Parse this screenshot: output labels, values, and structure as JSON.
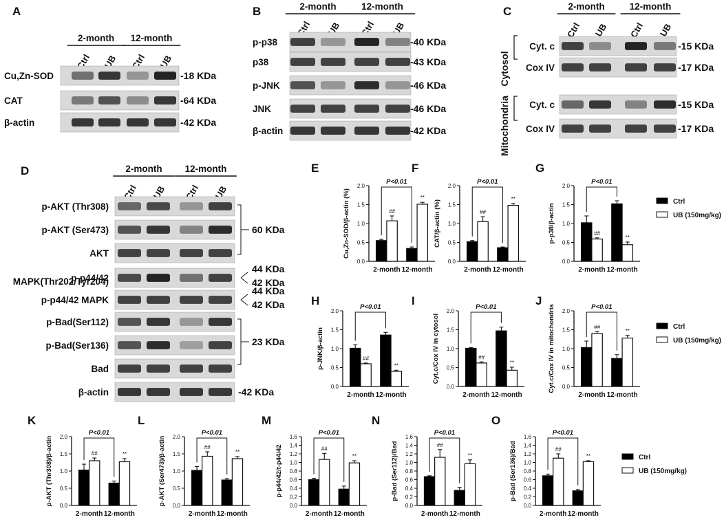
{
  "blots": {
    "A": {
      "letter": "A",
      "groups": [
        "2-month",
        "12-month"
      ],
      "lanes": [
        "Ctrl",
        "UB",
        "Ctrl",
        "UB"
      ],
      "rows": [
        {
          "label": "Cu,Zn-SOD",
          "mw": "-18 KDa",
          "intensity": [
            0.55,
            0.85,
            0.35,
            0.95
          ]
        },
        {
          "label": "CAT",
          "mw": "-64 KDa",
          "intensity": [
            0.5,
            0.7,
            0.4,
            0.85
          ]
        },
        {
          "label": "β-actin",
          "mw": "-42 KDa",
          "intensity": [
            0.85,
            0.85,
            0.85,
            0.85
          ]
        }
      ]
    },
    "B": {
      "letter": "B",
      "groups": [
        "2-month",
        "12-month"
      ],
      "lanes": [
        "Ctrl",
        "UB",
        "Ctrl",
        "UB"
      ],
      "rows": [
        {
          "label": "p-p38",
          "mw": "-40 KDa",
          "intensity": [
            0.8,
            0.35,
            0.95,
            0.45
          ]
        },
        {
          "label": "p38",
          "mw": "-43 KDa",
          "intensity": [
            0.8,
            0.8,
            0.8,
            0.8
          ]
        },
        {
          "label": "p-JNK",
          "mw": "-46 KDa",
          "intensity": [
            0.7,
            0.35,
            0.9,
            0.35
          ]
        },
        {
          "label": "JNK",
          "mw": "-46 KDa",
          "intensity": [
            0.8,
            0.8,
            0.8,
            0.8
          ]
        },
        {
          "label": "β-actin",
          "mw": "-42 KDa",
          "intensity": [
            0.85,
            0.85,
            0.85,
            0.85
          ]
        }
      ]
    },
    "C": {
      "letter": "C",
      "groups": [
        "2-month",
        "12-month"
      ],
      "lanes": [
        "Ctrl",
        "UB",
        "Ctrl",
        "UB"
      ],
      "sections": [
        "Cytosol",
        "Mitochondria"
      ],
      "rows": [
        {
          "label": "Cyt. c",
          "mw": "-15 KDa",
          "intensity": [
            0.8,
            0.4,
            0.95,
            0.5
          ]
        },
        {
          "label": "Cox IV",
          "mw": "-17 KDa",
          "intensity": [
            0.8,
            0.8,
            0.8,
            0.8
          ]
        },
        {
          "label": "Cyt. c",
          "mw": "-15 KDa",
          "intensity": [
            0.6,
            0.85,
            0.45,
            0.9
          ]
        },
        {
          "label": "Cox IV",
          "mw": "-17 KDa",
          "intensity": [
            0.8,
            0.8,
            0.8,
            0.8
          ]
        }
      ]
    },
    "D": {
      "letter": "D",
      "groups": [
        "2-month",
        "12-month"
      ],
      "lanes": [
        "Ctrl",
        "UB",
        "Ctrl",
        "UB"
      ],
      "rows": [
        {
          "label": "p-AKT (Thr308)",
          "intensity": [
            0.6,
            0.75,
            0.35,
            0.8
          ]
        },
        {
          "label": "p-AKT (Ser473)",
          "intensity": [
            0.7,
            0.85,
            0.45,
            0.9
          ]
        },
        {
          "label": "AKT",
          "intensity": [
            0.8,
            0.8,
            0.8,
            0.8
          ]
        },
        {
          "label": "p-p44/42",
          "intensity": [
            0.75,
            0.95,
            0.55,
            0.8
          ]
        },
        {
          "label": "p-p44/42 MAPK",
          "intensity": [
            0.8,
            0.8,
            0.8,
            0.8
          ]
        },
        {
          "label": "p-Bad(Ser112)",
          "intensity": [
            0.7,
            0.85,
            0.35,
            0.85
          ]
        },
        {
          "label": "p-Bad(Ser136)",
          "intensity": [
            0.7,
            0.9,
            0.3,
            0.8
          ]
        },
        {
          "label": "Bad",
          "intensity": [
            0.8,
            0.8,
            0.8,
            0.8
          ]
        },
        {
          "label": "β-actin",
          "intensity": [
            0.85,
            0.85,
            0.85,
            0.85
          ]
        }
      ],
      "label_line2": "MAPK(Thr202/Tyr204)",
      "mw_labels": [
        "60 KDa",
        "44 KDa",
        "42 KDa",
        "44 KDa",
        "42 KDa",
        "23 KDa",
        "-42 KDa"
      ]
    }
  },
  "legend": {
    "ctrl": "Ctrl",
    "ub": "UB (150mg/kg)"
  },
  "colors": {
    "ctrl": "#000000",
    "ub": "#ffffff",
    "band": "#1a1a1a",
    "blot_bg": "#d9d9d9"
  },
  "chart_data": [
    {
      "panel": "E",
      "type": "bar",
      "ylabel": "Cu,Zn-SOD/β-actin (%)",
      "ylim": [
        0,
        2.0
      ],
      "yticks": [
        "0.0",
        "0.5",
        "1.0",
        "1.5",
        "2.0"
      ],
      "ytick_values": [
        0,
        0.5,
        1.0,
        1.5,
        2.0
      ],
      "categories": [
        "2-month",
        "12-month"
      ],
      "series": [
        {
          "name": "Ctrl",
          "values": [
            0.55,
            0.34
          ],
          "errors": [
            0.03,
            0.04
          ]
        },
        {
          "name": "UB (150mg/kg)",
          "values": [
            1.07,
            1.51
          ],
          "errors": [
            0.13,
            0.05
          ]
        }
      ],
      "annotations": {
        "bracket": "P<0.01",
        "ub_marks": [
          "##",
          "**"
        ]
      }
    },
    {
      "panel": "F",
      "type": "bar",
      "ylabel": "CAT/β-actin (%)",
      "ylim": [
        0,
        2.0
      ],
      "yticks": [
        "0.0",
        "0.5",
        "1.0",
        "1.5",
        "2.0"
      ],
      "ytick_values": [
        0,
        0.5,
        1.0,
        1.5,
        2.0
      ],
      "categories": [
        "2-month",
        "12-month"
      ],
      "series": [
        {
          "name": "Ctrl",
          "values": [
            0.52,
            0.36
          ],
          "errors": [
            0.03,
            0.02
          ]
        },
        {
          "name": "UB (150mg/kg)",
          "values": [
            1.05,
            1.48
          ],
          "errors": [
            0.13,
            0.05
          ]
        }
      ],
      "annotations": {
        "bracket": "P<0.01",
        "ub_marks": [
          "##",
          "**"
        ]
      }
    },
    {
      "panel": "G",
      "type": "bar",
      "ylabel": "p-p38/β-actin",
      "ylim": [
        0,
        2.0
      ],
      "yticks": [
        "0.0",
        "0.5",
        "1.0",
        "1.5",
        "2.0"
      ],
      "ytick_values": [
        0,
        0.5,
        1.0,
        1.5,
        2.0
      ],
      "categories": [
        "2-month",
        "12-month"
      ],
      "series": [
        {
          "name": "Ctrl",
          "values": [
            1.02,
            1.52
          ],
          "errors": [
            0.18,
            0.08
          ]
        },
        {
          "name": "UB (150mg/kg)",
          "values": [
            0.59,
            0.44
          ],
          "errors": [
            0.03,
            0.07
          ]
        }
      ],
      "annotations": {
        "bracket": "P<0.01",
        "ub_marks": [
          "##",
          "**"
        ]
      }
    },
    {
      "panel": "H",
      "type": "bar",
      "ylabel": "p-JNK/β-actin",
      "ylim": [
        0,
        2.0
      ],
      "yticks": [
        "0.0",
        "0.5",
        "1.0",
        "1.5",
        "2.0"
      ],
      "ytick_values": [
        0,
        0.5,
        1.0,
        1.5,
        2.0
      ],
      "categories": [
        "2-month",
        "12-month"
      ],
      "series": [
        {
          "name": "Ctrl",
          "values": [
            1.01,
            1.36
          ],
          "errors": [
            0.09,
            0.07
          ]
        },
        {
          "name": "UB (150mg/kg)",
          "values": [
            0.6,
            0.4
          ],
          "errors": [
            0.02,
            0.03
          ]
        }
      ],
      "annotations": {
        "bracket": "P<0.01",
        "ub_marks": [
          "##",
          "**"
        ]
      }
    },
    {
      "panel": "I",
      "type": "bar",
      "ylabel": "Cyt.c/Cox IV in cytosol",
      "ylim": [
        0,
        2.0
      ],
      "yticks": [
        "0.0",
        "0.5",
        "1.0",
        "1.5",
        "2.0"
      ],
      "ytick_values": [
        0,
        0.5,
        1.0,
        1.5,
        2.0
      ],
      "categories": [
        "2-month",
        "12-month"
      ],
      "series": [
        {
          "name": "Ctrl",
          "values": [
            1.01,
            1.47
          ],
          "errors": [
            0.02,
            0.1
          ]
        },
        {
          "name": "UB (150mg/kg)",
          "values": [
            0.62,
            0.43
          ],
          "errors": [
            0.03,
            0.08
          ]
        }
      ],
      "annotations": {
        "bracket": "P<0.01",
        "ub_marks": [
          "##",
          "**"
        ]
      }
    },
    {
      "panel": "J",
      "type": "bar",
      "ylabel": "Cyt.c/Cox IV in mitochondria",
      "ylim": [
        0,
        2.0
      ],
      "yticks": [
        "0.0",
        "0.5",
        "1.0",
        "1.5",
        "2.0"
      ],
      "ytick_values": [
        0,
        0.5,
        1.0,
        1.5,
        2.0
      ],
      "categories": [
        "2-month",
        "12-month"
      ],
      "series": [
        {
          "name": "Ctrl",
          "values": [
            1.03,
            0.74
          ],
          "errors": [
            0.17,
            0.1
          ]
        },
        {
          "name": "UB (150mg/kg)",
          "values": [
            1.4,
            1.28
          ],
          "errors": [
            0.05,
            0.07
          ]
        }
      ],
      "annotations": {
        "bracket": "P<0.01",
        "ub_marks": [
          "##",
          "**"
        ]
      }
    },
    {
      "panel": "K",
      "type": "bar",
      "ylabel": "p-AKT (Thr308)/β-actin",
      "ylim": [
        0,
        2.0
      ],
      "yticks": [
        "0.0",
        "0.5",
        "1.0",
        "1.5",
        "2.0"
      ],
      "ytick_values": [
        0,
        0.5,
        1.0,
        1.5,
        2.0
      ],
      "categories": [
        "2-month",
        "12-month"
      ],
      "series": [
        {
          "name": "Ctrl",
          "values": [
            1.03,
            0.65
          ],
          "errors": [
            0.17,
            0.06
          ]
        },
        {
          "name": "UB (150mg/kg)",
          "values": [
            1.3,
            1.27
          ],
          "errors": [
            0.08,
            0.09
          ]
        }
      ],
      "annotations": {
        "bracket": "P<0.01",
        "ub_marks": [
          "##",
          "**"
        ]
      }
    },
    {
      "panel": "L",
      "type": "bar",
      "ylabel": "p-AKT (Ser473)/β-actin",
      "ylim": [
        0,
        2.0
      ],
      "yticks": [
        "0.0",
        "0.5",
        "1.0",
        "1.5",
        "2.0"
      ],
      "ytick_values": [
        0,
        0.5,
        1.0,
        1.5,
        2.0
      ],
      "categories": [
        "2-month",
        "12-month"
      ],
      "series": [
        {
          "name": "Ctrl",
          "values": [
            1.02,
            0.74
          ],
          "errors": [
            0.11,
            0.04
          ]
        },
        {
          "name": "UB (150mg/kg)",
          "values": [
            1.43,
            1.36
          ],
          "errors": [
            0.13,
            0.06
          ]
        }
      ],
      "annotations": {
        "bracket": "P<0.01",
        "ub_marks": [
          "##",
          "**"
        ]
      }
    },
    {
      "panel": "M",
      "type": "bar",
      "ylabel": "p-p44/42/t-p44/42",
      "ylim": [
        0,
        1.6
      ],
      "yticks": [
        "0.0",
        "0.2",
        "0.4",
        "0.6",
        "0.8",
        "1.0",
        "1.2",
        "1.4",
        "1.6"
      ],
      "ytick_values": [
        0,
        0.2,
        0.4,
        0.6,
        0.8,
        1.0,
        1.2,
        1.4,
        1.6
      ],
      "categories": [
        "2-month",
        "12-month"
      ],
      "series": [
        {
          "name": "Ctrl",
          "values": [
            0.6,
            0.38
          ],
          "errors": [
            0.03,
            0.07
          ]
        },
        {
          "name": "UB (150mg/kg)",
          "values": [
            1.07,
            0.99
          ],
          "errors": [
            0.14,
            0.05
          ]
        }
      ],
      "annotations": {
        "bracket": "P<0.01",
        "ub_marks": [
          "##",
          "**"
        ]
      }
    },
    {
      "panel": "N",
      "type": "bar",
      "ylabel": "p-Bad (Ser112)/Bad",
      "ylim": [
        0,
        1.6
      ],
      "yticks": [
        "0.0",
        "0.2",
        "0.4",
        "0.6",
        "0.8",
        "1.0",
        "1.2",
        "1.4",
        "1.6"
      ],
      "ytick_values": [
        0,
        0.2,
        0.4,
        0.6,
        0.8,
        1.0,
        1.2,
        1.4,
        1.6
      ],
      "categories": [
        "2-month",
        "12-month"
      ],
      "series": [
        {
          "name": "Ctrl",
          "values": [
            0.67,
            0.35
          ],
          "errors": [
            0.02,
            0.07
          ]
        },
        {
          "name": "UB (150mg/kg)",
          "values": [
            1.12,
            0.97
          ],
          "errors": [
            0.18,
            0.09
          ]
        }
      ],
      "annotations": {
        "bracket": "P<0.01",
        "ub_marks": [
          "##",
          "**"
        ]
      }
    },
    {
      "panel": "O",
      "type": "bar",
      "ylabel": "p-Bad (Ser136)/Bad",
      "ylim": [
        0,
        1.6
      ],
      "yticks": [
        "0.0",
        "0.2",
        "0.4",
        "0.6",
        "0.8",
        "1.0",
        "1.2",
        "1.4",
        "1.6"
      ],
      "ytick_values": [
        0,
        0.2,
        0.4,
        0.6,
        0.8,
        1.0,
        1.2,
        1.4,
        1.6
      ],
      "categories": [
        "2-month",
        "12-month"
      ],
      "series": [
        {
          "name": "Ctrl",
          "values": [
            0.69,
            0.34
          ],
          "errors": [
            0.04,
            0.03
          ]
        },
        {
          "name": "UB (150mg/kg)",
          "values": [
            1.1,
            1.02
          ],
          "errors": [
            0.1,
            0.02
          ]
        }
      ],
      "annotations": {
        "bracket": "P<0.01",
        "ub_marks": [
          "##",
          "**"
        ]
      }
    }
  ]
}
